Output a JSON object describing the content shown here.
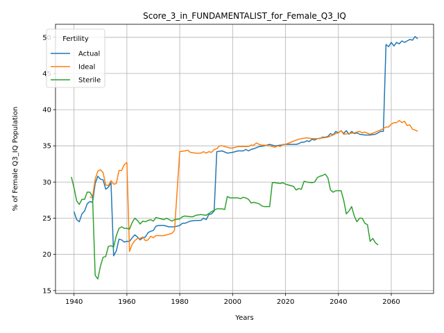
{
  "chart_data": {
    "type": "line",
    "title": "Score_3_in_FUNDAMENTALIST_for_Female_Q3_IQ",
    "xlabel": "Years",
    "ylabel": "% of Female Q3_IQ Population",
    "xlim": [
      1933,
      2076
    ],
    "ylim": [
      14.6,
      51.8
    ],
    "xticks": [
      1940,
      1960,
      1980,
      2000,
      2020,
      2040,
      2060
    ],
    "yticks": [
      15,
      20,
      25,
      30,
      35,
      40,
      45,
      50
    ],
    "grid": true,
    "legend": {
      "title": "Fertility",
      "position": "top-left"
    },
    "series": [
      {
        "name": "Actual",
        "color": "#1f77b4",
        "points": [
          [
            1940,
            25.9
          ],
          [
            1941,
            24.8
          ],
          [
            1942,
            24.5
          ],
          [
            1943,
            25.6
          ],
          [
            1944,
            26.0
          ],
          [
            1945,
            27.0
          ],
          [
            1946,
            27.3
          ],
          [
            1947,
            27.2
          ],
          [
            1948,
            29.8
          ],
          [
            1949,
            30.8
          ],
          [
            1950,
            30.4
          ],
          [
            1951,
            30.3
          ],
          [
            1952,
            29.0
          ],
          [
            1953,
            29.3
          ],
          [
            1954,
            29.9
          ],
          [
            1955,
            19.8
          ],
          [
            1956,
            20.5
          ],
          [
            1957,
            22.1
          ],
          [
            1958,
            22.0
          ],
          [
            1959,
            21.7
          ],
          [
            1960,
            21.8
          ],
          [
            1961,
            21.8
          ],
          [
            1962,
            22.3
          ],
          [
            1963,
            22.7
          ],
          [
            1964,
            22.4
          ],
          [
            1965,
            22.0
          ],
          [
            1966,
            22.3
          ],
          [
            1967,
            22.4
          ],
          [
            1968,
            23.0
          ],
          [
            1969,
            23.2
          ],
          [
            1970,
            23.3
          ],
          [
            1971,
            23.9
          ],
          [
            1972,
            24.0
          ],
          [
            1974,
            24.0
          ],
          [
            1976,
            23.8
          ],
          [
            1978,
            23.8
          ],
          [
            1980,
            24.0
          ],
          [
            1981,
            24.3
          ],
          [
            1982,
            24.3
          ],
          [
            1984,
            24.6
          ],
          [
            1986,
            24.7
          ],
          [
            1988,
            24.7
          ],
          [
            1989,
            25.0
          ],
          [
            1990,
            24.8
          ],
          [
            1991,
            25.5
          ],
          [
            1992,
            25.6
          ],
          [
            1993,
            26.0
          ],
          [
            1994,
            34.2
          ],
          [
            1996,
            34.3
          ],
          [
            1998,
            34.0
          ],
          [
            2000,
            34.1
          ],
          [
            2002,
            34.3
          ],
          [
            2004,
            34.3
          ],
          [
            2005,
            34.5
          ],
          [
            2006,
            34.3
          ],
          [
            2007,
            34.5
          ],
          [
            2008,
            34.6
          ],
          [
            2010,
            34.9
          ],
          [
            2012,
            35.0
          ],
          [
            2014,
            35.2
          ],
          [
            2016,
            35.0
          ],
          [
            2018,
            35.1
          ],
          [
            2020,
            35.2
          ],
          [
            2022,
            35.2
          ],
          [
            2024,
            35.2
          ],
          [
            2025,
            35.3
          ],
          [
            2026,
            35.5
          ],
          [
            2027,
            35.5
          ],
          [
            2028,
            35.7
          ],
          [
            2029,
            35.6
          ],
          [
            2030,
            35.9
          ],
          [
            2031,
            35.8
          ],
          [
            2032,
            36.0
          ],
          [
            2033,
            36.0
          ],
          [
            2034,
            36.2
          ],
          [
            2035,
            36.2
          ],
          [
            2036,
            36.3
          ],
          [
            2037,
            36.7
          ],
          [
            2038,
            36.5
          ],
          [
            2039,
            37.0
          ],
          [
            2040,
            36.8
          ],
          [
            2041,
            37.1
          ],
          [
            2042,
            36.7
          ],
          [
            2043,
            37.1
          ],
          [
            2044,
            36.6
          ],
          [
            2045,
            37.0
          ],
          [
            2046,
            36.7
          ],
          [
            2047,
            36.8
          ],
          [
            2048,
            36.6
          ],
          [
            2050,
            36.5
          ],
          [
            2052,
            36.5
          ],
          [
            2054,
            36.6
          ],
          [
            2055,
            36.8
          ],
          [
            2056,
            37.0
          ],
          [
            2057,
            37.0
          ],
          [
            2058,
            49.0
          ],
          [
            2059,
            48.7
          ],
          [
            2060,
            49.3
          ],
          [
            2061,
            48.8
          ],
          [
            2062,
            49.3
          ],
          [
            2063,
            49.1
          ],
          [
            2064,
            49.5
          ],
          [
            2065,
            49.3
          ],
          [
            2066,
            49.5
          ],
          [
            2067,
            49.7
          ],
          [
            2068,
            49.6
          ],
          [
            2069,
            50.1
          ],
          [
            2070,
            49.8
          ]
        ]
      },
      {
        "name": "Ideal",
        "color": "#ff7f0e",
        "points": [
          [
            1946,
            27.9
          ],
          [
            1947,
            27.9
          ],
          [
            1948,
            30.4
          ],
          [
            1949,
            31.5
          ],
          [
            1950,
            31.7
          ],
          [
            1951,
            31.3
          ],
          [
            1952,
            29.6
          ],
          [
            1953,
            29.5
          ],
          [
            1954,
            30.2
          ],
          [
            1955,
            29.7
          ],
          [
            1956,
            29.8
          ],
          [
            1957,
            31.6
          ],
          [
            1958,
            31.6
          ],
          [
            1959,
            32.4
          ],
          [
            1960,
            32.7
          ],
          [
            1961,
            20.4
          ],
          [
            1962,
            21.4
          ],
          [
            1963,
            21.9
          ],
          [
            1964,
            22.2
          ],
          [
            1965,
            22.2
          ],
          [
            1966,
            22.4
          ],
          [
            1967,
            21.9
          ],
          [
            1968,
            22.0
          ],
          [
            1969,
            22.5
          ],
          [
            1970,
            22.3
          ],
          [
            1971,
            22.6
          ],
          [
            1972,
            22.6
          ],
          [
            1974,
            22.6
          ],
          [
            1976,
            22.8
          ],
          [
            1977,
            22.9
          ],
          [
            1978,
            23.3
          ],
          [
            1980,
            34.2
          ],
          [
            1982,
            34.3
          ],
          [
            1983,
            34.4
          ],
          [
            1984,
            34.1
          ],
          [
            1986,
            34.0
          ],
          [
            1988,
            34.0
          ],
          [
            1989,
            34.2
          ],
          [
            1990,
            34.0
          ],
          [
            1991,
            34.2
          ],
          [
            1992,
            34.1
          ],
          [
            1993,
            34.5
          ],
          [
            1994,
            34.6
          ],
          [
            1995,
            35.0
          ],
          [
            1996,
            35.0
          ],
          [
            1998,
            34.8
          ],
          [
            1999,
            34.7
          ],
          [
            2000,
            34.7
          ],
          [
            2002,
            34.9
          ],
          [
            2004,
            34.9
          ],
          [
            2006,
            34.9
          ],
          [
            2007,
            35.1
          ],
          [
            2008,
            35.1
          ],
          [
            2009,
            35.4
          ],
          [
            2010,
            35.2
          ],
          [
            2011,
            35.1
          ],
          [
            2012,
            35.1
          ],
          [
            2014,
            35.0
          ],
          [
            2016,
            34.8
          ],
          [
            2017,
            35.0
          ],
          [
            2018,
            34.9
          ],
          [
            2019,
            35.2
          ],
          [
            2020,
            35.2
          ],
          [
            2022,
            35.5
          ],
          [
            2024,
            35.8
          ],
          [
            2026,
            36.0
          ],
          [
            2028,
            36.1
          ],
          [
            2030,
            36.0
          ],
          [
            2032,
            36.0
          ],
          [
            2034,
            36.1
          ],
          [
            2036,
            36.2
          ],
          [
            2038,
            36.5
          ],
          [
            2039,
            36.7
          ],
          [
            2040,
            36.8
          ],
          [
            2041,
            37.1
          ],
          [
            2042,
            36.6
          ],
          [
            2044,
            36.7
          ],
          [
            2046,
            36.8
          ],
          [
            2048,
            37.0
          ],
          [
            2049,
            36.8
          ],
          [
            2050,
            36.9
          ],
          [
            2052,
            36.6
          ],
          [
            2054,
            36.9
          ],
          [
            2056,
            37.2
          ],
          [
            2058,
            37.6
          ],
          [
            2059,
            37.6
          ],
          [
            2060,
            38.0
          ],
          [
            2061,
            38.2
          ],
          [
            2062,
            38.2
          ],
          [
            2063,
            38.5
          ],
          [
            2064,
            38.2
          ],
          [
            2065,
            38.4
          ],
          [
            2066,
            37.8
          ],
          [
            2067,
            37.9
          ],
          [
            2068,
            37.3
          ],
          [
            2069,
            37.2
          ],
          [
            2070,
            37.0
          ]
        ]
      },
      {
        "name": "Sterile",
        "color": "#2ca02c",
        "points": [
          [
            1939,
            30.7
          ],
          [
            1940,
            29.2
          ],
          [
            1941,
            27.4
          ],
          [
            1942,
            26.9
          ],
          [
            1943,
            27.6
          ],
          [
            1944,
            27.6
          ],
          [
            1945,
            28.6
          ],
          [
            1946,
            28.6
          ],
          [
            1947,
            28.0
          ],
          [
            1948,
            17.1
          ],
          [
            1949,
            16.6
          ],
          [
            1950,
            18.4
          ],
          [
            1951,
            19.6
          ],
          [
            1952,
            19.7
          ],
          [
            1953,
            21.1
          ],
          [
            1954,
            21.2
          ],
          [
            1955,
            21.0
          ],
          [
            1956,
            22.6
          ],
          [
            1957,
            23.6
          ],
          [
            1958,
            23.8
          ],
          [
            1959,
            23.6
          ],
          [
            1960,
            23.6
          ],
          [
            1961,
            23.5
          ],
          [
            1962,
            24.4
          ],
          [
            1963,
            25.0
          ],
          [
            1964,
            24.7
          ],
          [
            1965,
            24.2
          ],
          [
            1966,
            24.6
          ],
          [
            1967,
            24.5
          ],
          [
            1968,
            24.7
          ],
          [
            1969,
            24.8
          ],
          [
            1970,
            24.6
          ],
          [
            1971,
            25.1
          ],
          [
            1972,
            25.0
          ],
          [
            1974,
            24.8
          ],
          [
            1975,
            25.0
          ],
          [
            1976,
            24.8
          ],
          [
            1977,
            24.6
          ],
          [
            1978,
            24.8
          ],
          [
            1980,
            24.9
          ],
          [
            1981,
            25.2
          ],
          [
            1982,
            25.3
          ],
          [
            1984,
            25.2
          ],
          [
            1985,
            25.2
          ],
          [
            1986,
            25.4
          ],
          [
            1988,
            25.5
          ],
          [
            1990,
            25.4
          ],
          [
            1992,
            25.9
          ],
          [
            1994,
            26.3
          ],
          [
            1996,
            26.3
          ],
          [
            1997,
            26.2
          ],
          [
            1998,
            28.0
          ],
          [
            1999,
            27.8
          ],
          [
            2000,
            27.8
          ],
          [
            2002,
            27.8
          ],
          [
            2003,
            27.7
          ],
          [
            2004,
            27.9
          ],
          [
            2005,
            27.8
          ],
          [
            2006,
            27.6
          ],
          [
            2007,
            27.1
          ],
          [
            2008,
            27.2
          ],
          [
            2010,
            27.0
          ],
          [
            2011,
            26.7
          ],
          [
            2012,
            26.6
          ],
          [
            2014,
            26.6
          ],
          [
            2015,
            29.9
          ],
          [
            2016,
            29.9
          ],
          [
            2018,
            29.8
          ],
          [
            2019,
            29.9
          ],
          [
            2020,
            29.7
          ],
          [
            2022,
            29.5
          ],
          [
            2023,
            29.4
          ],
          [
            2024,
            28.9
          ],
          [
            2025,
            29.1
          ],
          [
            2026,
            29.0
          ],
          [
            2027,
            30.1
          ],
          [
            2028,
            30.0
          ],
          [
            2030,
            29.9
          ],
          [
            2031,
            30.0
          ],
          [
            2032,
            30.6
          ],
          [
            2033,
            30.8
          ],
          [
            2034,
            30.9
          ],
          [
            2035,
            31.1
          ],
          [
            2036,
            30.6
          ],
          [
            2037,
            28.9
          ],
          [
            2038,
            28.6
          ],
          [
            2039,
            28.8
          ],
          [
            2040,
            28.8
          ],
          [
            2041,
            28.8
          ],
          [
            2042,
            27.5
          ],
          [
            2043,
            25.6
          ],
          [
            2044,
            26.0
          ],
          [
            2045,
            26.6
          ],
          [
            2046,
            25.3
          ],
          [
            2047,
            24.5
          ],
          [
            2048,
            25.0
          ],
          [
            2049,
            25.0
          ],
          [
            2050,
            24.3
          ],
          [
            2051,
            24.1
          ],
          [
            2052,
            21.8
          ],
          [
            2053,
            22.2
          ],
          [
            2054,
            21.6
          ],
          [
            2055,
            21.3
          ]
        ]
      }
    ]
  }
}
